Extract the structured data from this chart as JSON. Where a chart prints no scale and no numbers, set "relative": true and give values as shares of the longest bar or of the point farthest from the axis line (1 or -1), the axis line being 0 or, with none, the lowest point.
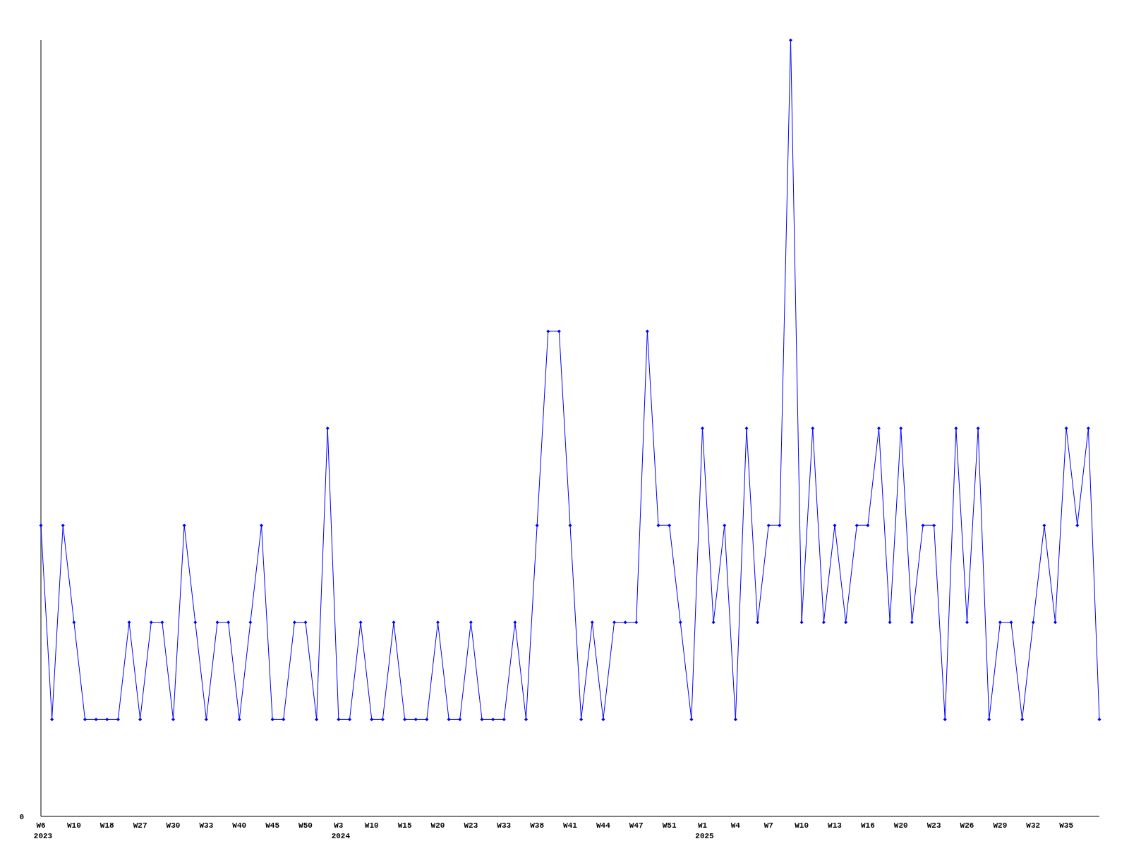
{
  "chart_data": {
    "type": "line",
    "relative": true,
    "annotations": [
      "0"
    ],
    "marker": "diamond",
    "line_style": "solid",
    "categories": [
      "W6\n2023",
      null,
      null,
      "W10",
      null,
      null,
      "W18",
      null,
      null,
      "W27",
      null,
      null,
      "W30",
      null,
      null,
      "W33",
      null,
      null,
      "W40",
      null,
      null,
      "W45",
      null,
      null,
      "W50",
      null,
      null,
      "W3\n2024",
      null,
      null,
      "W10",
      null,
      null,
      "W15",
      null,
      null,
      "W20",
      null,
      null,
      "W23",
      null,
      null,
      "W33",
      null,
      null,
      "W38",
      null,
      null,
      "W41",
      null,
      null,
      "W44",
      null,
      null,
      "W47",
      null,
      null,
      "W51",
      null,
      null,
      "W1\n2025",
      null,
      null,
      "W4",
      null,
      null,
      "W7",
      null,
      null,
      "W10",
      null,
      null,
      "W13",
      null,
      null,
      "W16",
      null,
      null,
      "W20",
      null,
      null,
      "W23",
      null,
      null,
      "W26",
      null,
      null,
      "W29",
      null,
      null,
      "W32",
      null,
      null,
      "W35",
      null,
      null,
      null
    ],
    "series": [
      {
        "color": "#0000ff",
        "values": [
          0.375,
          0.125,
          0.375,
          0.25,
          0.125,
          0.125,
          0.125,
          0.125,
          0.25,
          0.125,
          0.25,
          0.25,
          0.125,
          0.375,
          0.25,
          0.125,
          0.25,
          0.25,
          0.125,
          0.25,
          0.375,
          0.125,
          0.125,
          0.25,
          0.25,
          0.125,
          0.5,
          0.125,
          0.125,
          0.25,
          0.125,
          0.125,
          0.25,
          0.125,
          0.125,
          0.125,
          0.25,
          0.125,
          0.125,
          0.25,
          0.125,
          0.125,
          0.125,
          0.25,
          0.125,
          0.375,
          0.625,
          0.625,
          0.375,
          0.125,
          0.25,
          0.125,
          0.25,
          0.25,
          0.25,
          0.625,
          0.375,
          0.375,
          0.25,
          0.125,
          0.5,
          0.25,
          0.375,
          0.125,
          0.5,
          0.25,
          0.375,
          0.375,
          1,
          0.25,
          0.5,
          0.25,
          0.375,
          0.25,
          0.375,
          0.375,
          0.5,
          0.25,
          0.5,
          0.25,
          0.375,
          0.375,
          0.125,
          0.5,
          0.25,
          0.5,
          0.125,
          0.25,
          0.25,
          0.125,
          0.25,
          0.375,
          0.25,
          0.5,
          0.375,
          0.5,
          0.125
        ]
      }
    ]
  }
}
